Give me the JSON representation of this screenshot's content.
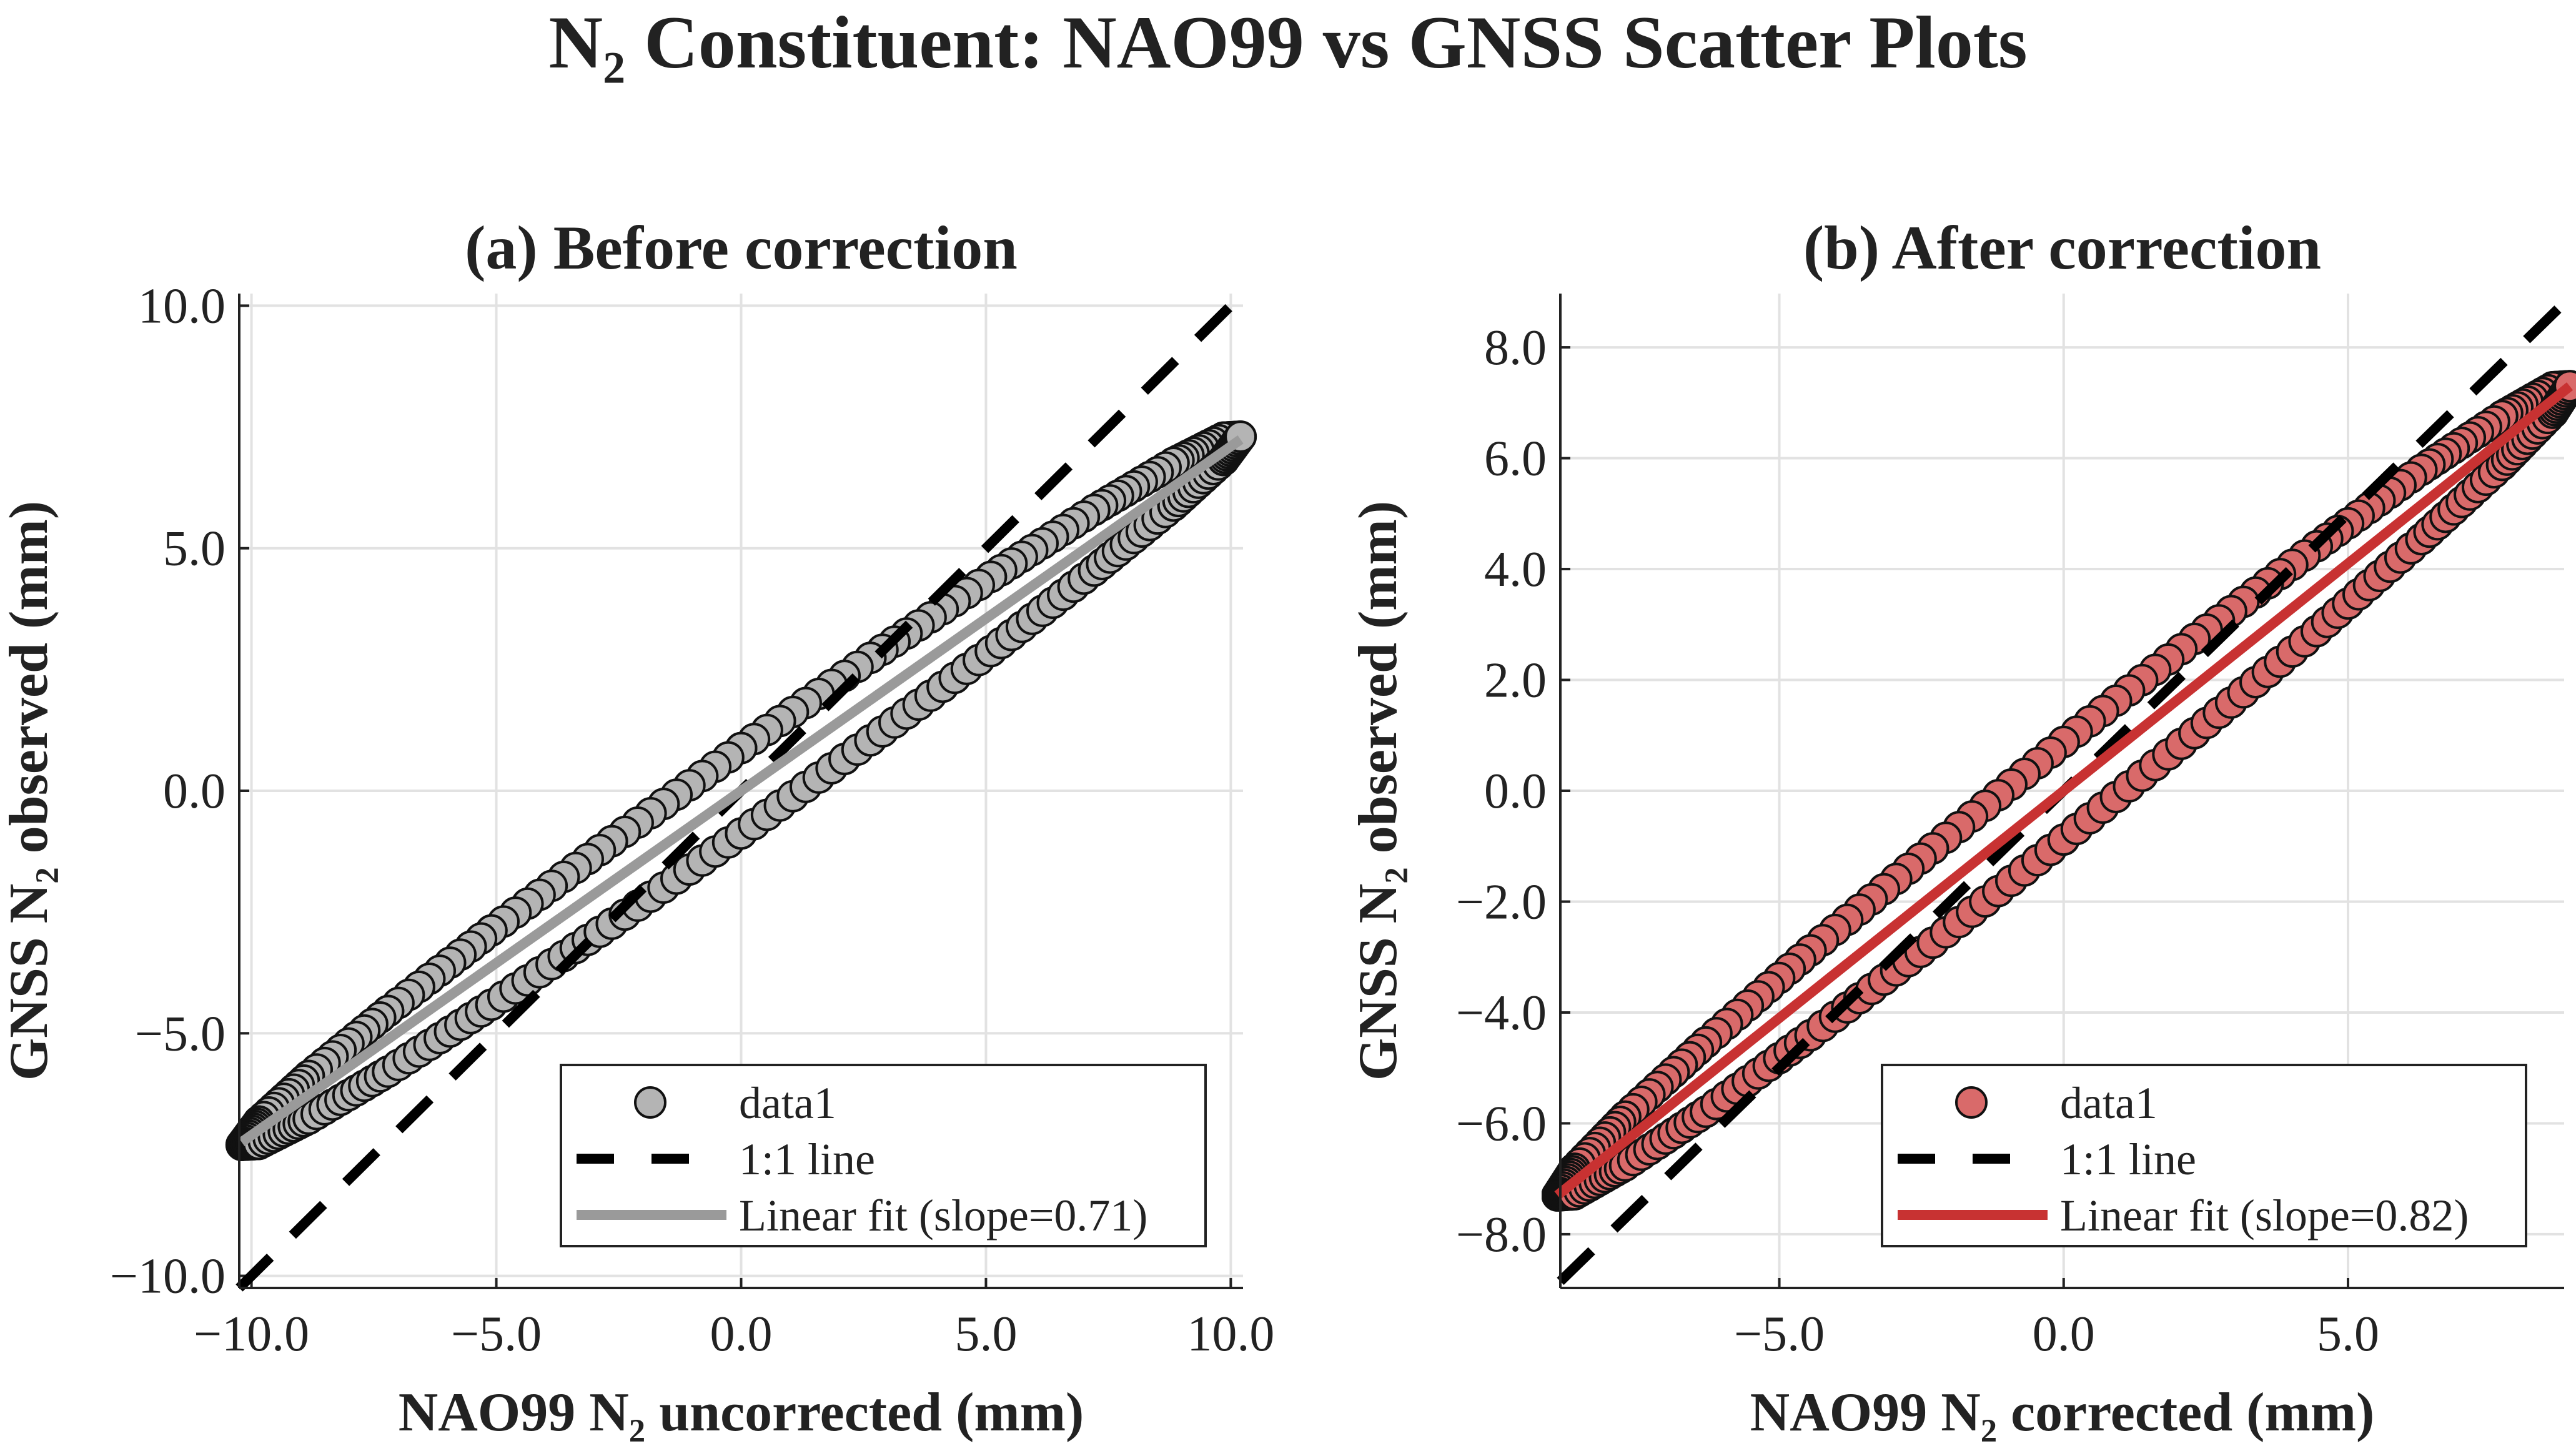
{
  "title": "N₂ Constituent: NAO99 vs GNSS Scatter Plots",
  "chart_data": [
    {
      "type": "scatter",
      "title": "(a) Before correction",
      "xlabel": "NAO99 N₂ uncorrected (mm)",
      "ylabel": "GNSS N₂ observed (mm)",
      "xlim": [
        -10.25,
        10.25
      ],
      "ylim": [
        -10.25,
        10.25
      ],
      "xticks": [
        -10,
        -5,
        0,
        5,
        10
      ],
      "xtick_labels": [
        "−10.0",
        "−5.0",
        "0.0",
        "5.0",
        "10.0"
      ],
      "yticks": [
        -10,
        -5,
        0,
        5,
        10
      ],
      "ytick_labels": [
        "−10.0",
        "−5.0",
        "0.0",
        "5.0",
        "10.0"
      ],
      "grid": true,
      "legend_position": "bottom-right",
      "marker_color": "#b4b4b4",
      "fit_color": "#9a9a9a",
      "fit_slope": 0.71,
      "series": [
        {
          "name": "data1",
          "x": [
            10.2,
            9.85,
            8.83,
            7.21,
            5.1,
            2.64,
            0,
            -2.64,
            -5.1,
            -7.21,
            -8.83,
            -9.85,
            -10.2,
            -9.85,
            -8.83,
            -7.21,
            -5.1,
            -2.64,
            0,
            2.64,
            5.1,
            7.21,
            8.83,
            9.85
          ],
          "y": [
            7.3,
            7.28,
            6.76,
            5.79,
            4.41,
            2.74,
            0.88,
            -1.04,
            -2.88,
            -4.54,
            -5.88,
            -6.82,
            -7.3,
            -7.28,
            -6.76,
            -5.79,
            -4.41,
            -2.74,
            -0.88,
            1.04,
            2.88,
            4.54,
            5.88,
            6.82
          ]
        },
        {
          "name": "1:1 line"
        },
        {
          "name": "Linear fit (slope=0.71)"
        }
      ]
    },
    {
      "type": "scatter",
      "title": "(b) After correction",
      "xlabel": "NAO99 N₂ corrected (mm)",
      "ylabel": "GNSS N₂ observed (mm)",
      "xlim": [
        -8.85,
        8.8
      ],
      "ylim": [
        -8.97,
        8.97
      ],
      "xticks": [
        -5,
        0,
        5
      ],
      "xtick_labels": [
        "−5.0",
        "0.0",
        "5.0"
      ],
      "yticks": [
        -8,
        -6,
        -4,
        -2,
        0,
        2,
        4,
        6,
        8
      ],
      "ytick_labels": [
        "−8.0",
        "−6.0",
        "−4.0",
        "−2.0",
        "0.0",
        "2.0",
        "4.0",
        "6.0",
        "8.0"
      ],
      "grid": true,
      "legend_position": "bottom-right",
      "marker_color": "#d96a6a",
      "fit_color": "#c83232",
      "fit_slope": 0.82,
      "series": [
        {
          "name": "data1",
          "x": [
            8.9,
            8.6,
            7.71,
            6.29,
            4.45,
            2.3,
            0,
            -2.3,
            -4.45,
            -6.29,
            -7.71,
            -8.6,
            -8.9,
            -8.6,
            -7.71,
            -6.29,
            -4.45,
            -2.3,
            0,
            2.3,
            4.45,
            6.29,
            7.71,
            8.6
          ],
          "y": [
            7.3,
            7.28,
            6.76,
            5.79,
            4.41,
            2.74,
            0.88,
            -1.04,
            -2.88,
            -4.54,
            -5.88,
            -6.82,
            -7.3,
            -7.28,
            -6.76,
            -5.79,
            -4.41,
            -2.74,
            -0.88,
            1.04,
            2.88,
            4.54,
            5.88,
            6.82
          ]
        },
        {
          "name": "1:1 line"
        },
        {
          "name": "Linear fit (slope=0.82)"
        }
      ]
    }
  ]
}
